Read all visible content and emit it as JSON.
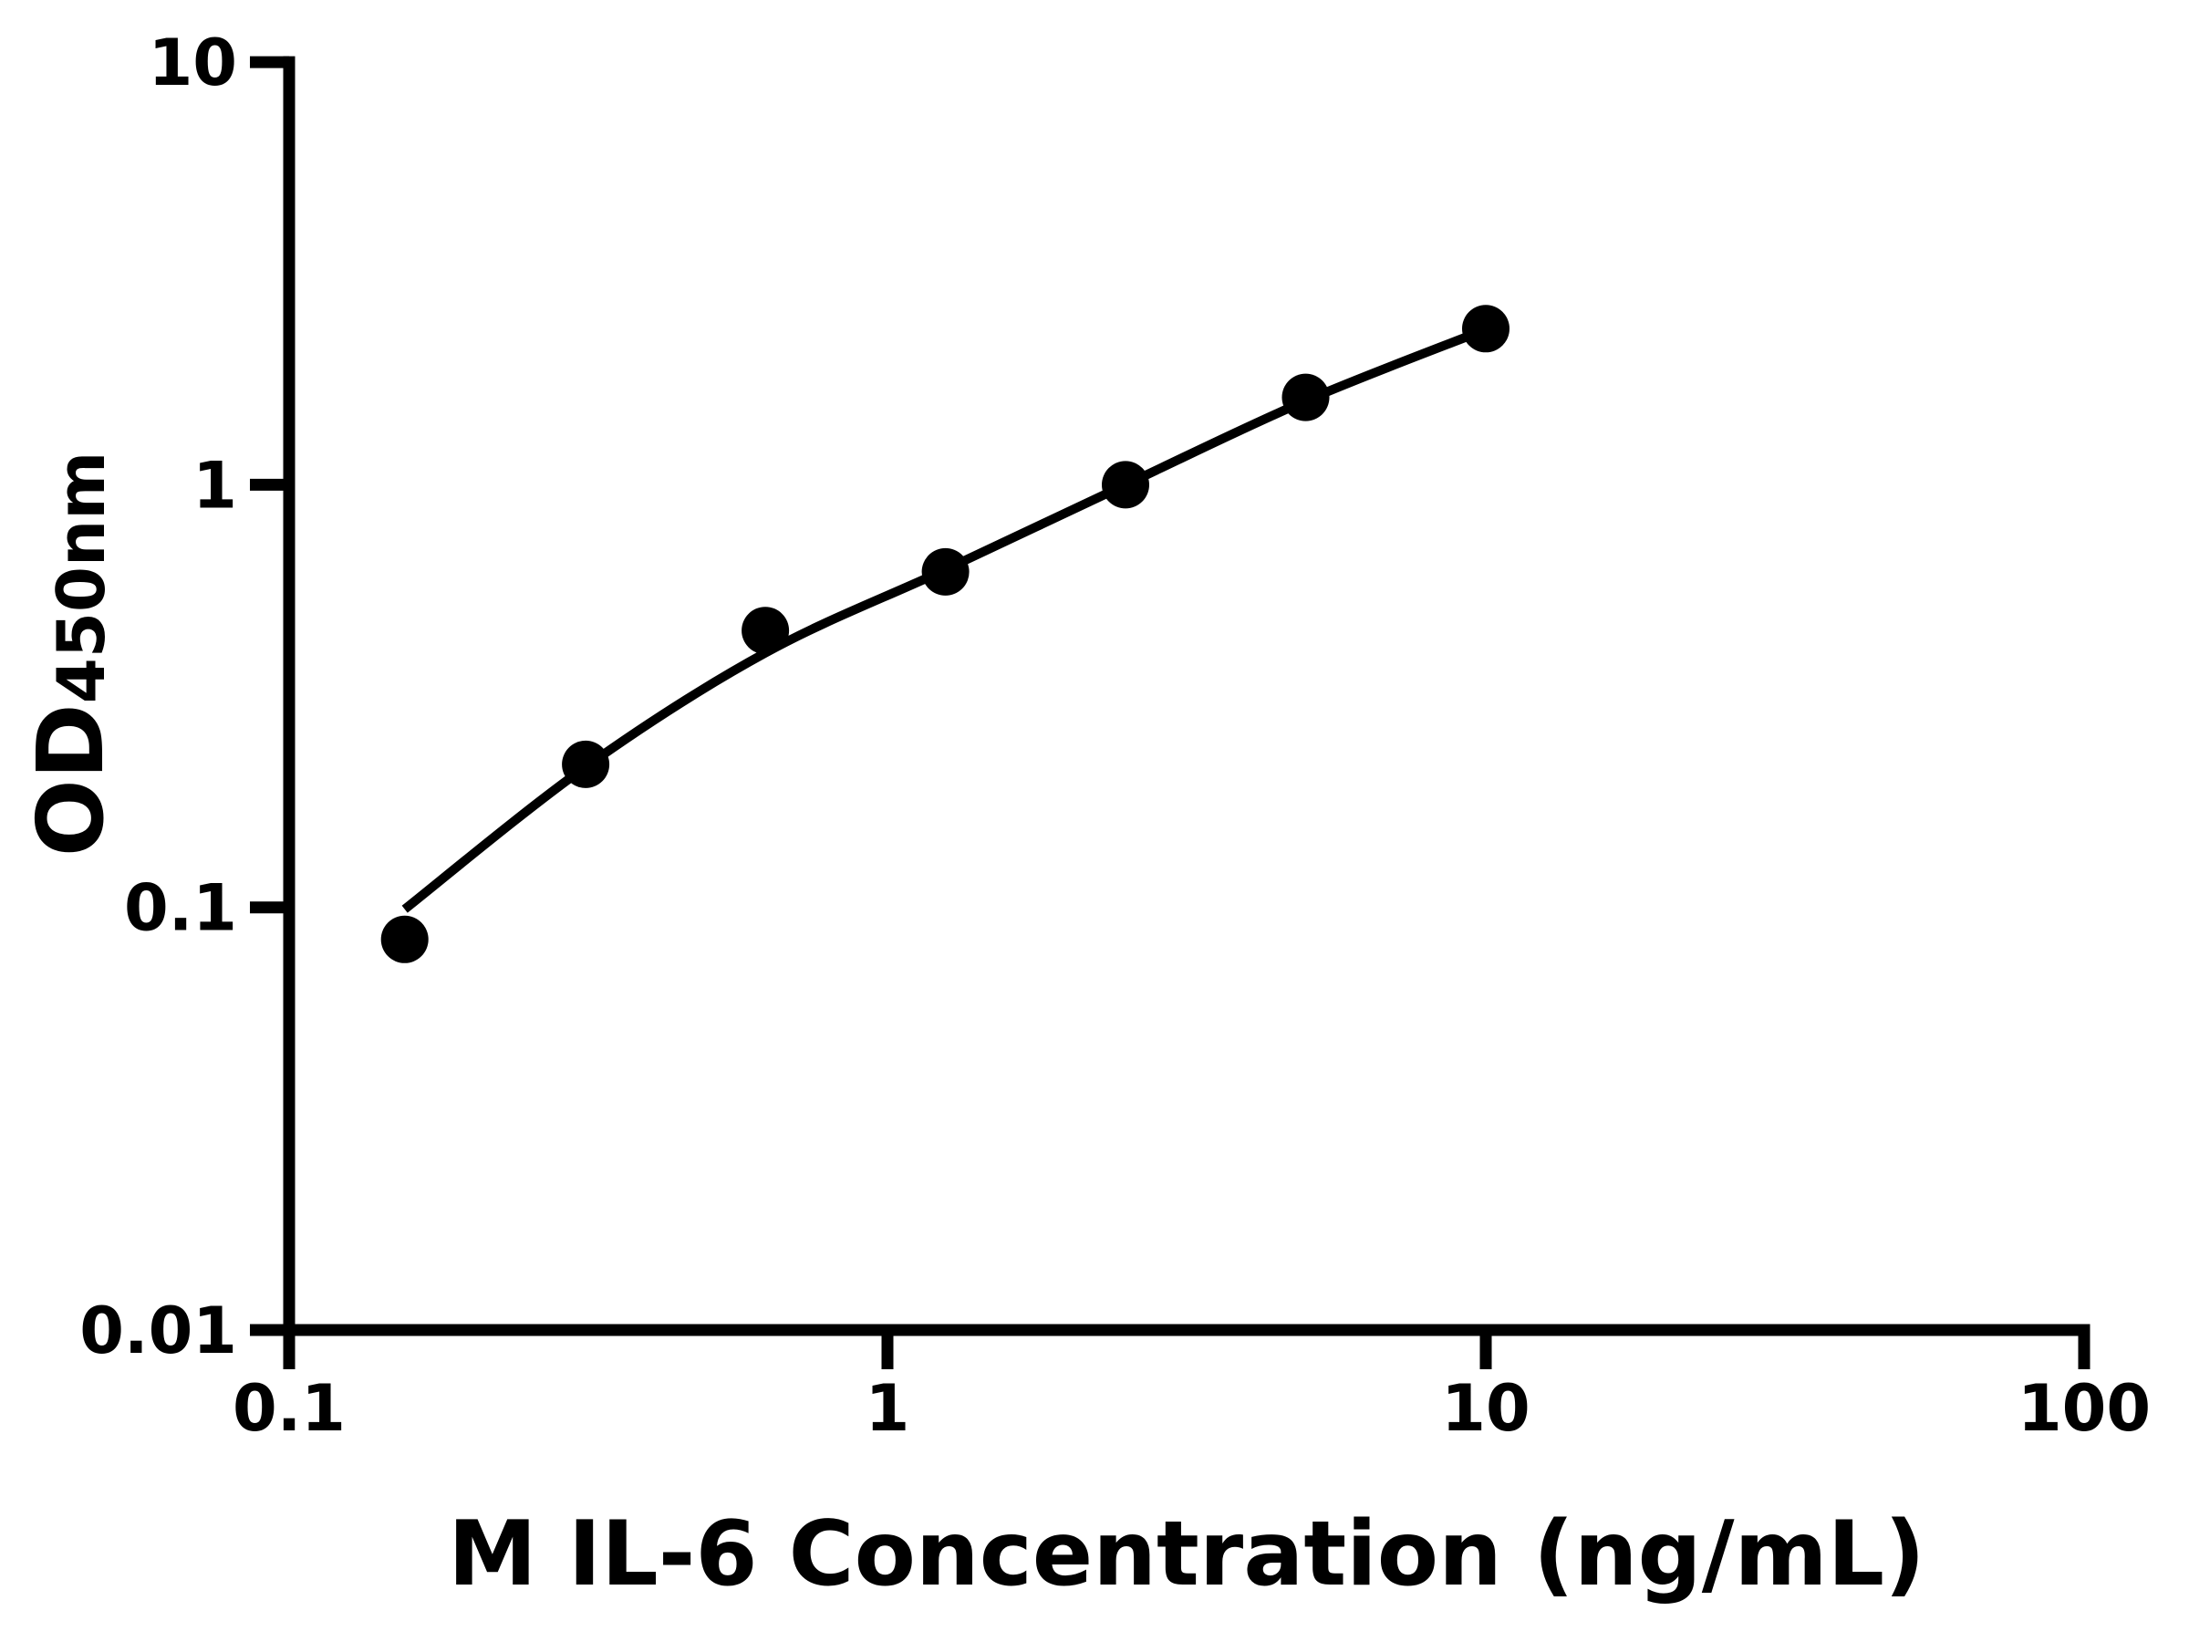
{
  "figure": {
    "background": "#ffffff",
    "ink_color": "#000000"
  },
  "chart_data": {
    "type": "scatter",
    "title": "",
    "xlabel": "M IL-6 Concentration (ng/mL)",
    "ylabel": "OD450nm",
    "ylabel_main": "OD",
    "ylabel_subscript": "450nm",
    "x_scale": "log",
    "y_scale": "log",
    "xlim": [
      0.1,
      100
    ],
    "ylim": [
      0.01,
      10
    ],
    "grid": false,
    "legend": "none",
    "x_ticks": [
      {
        "value": 0.1,
        "label": "0.1"
      },
      {
        "value": 1,
        "label": "1"
      },
      {
        "value": 10,
        "label": "10"
      },
      {
        "value": 100,
        "label": "100"
      }
    ],
    "y_ticks": [
      {
        "value": 0.01,
        "label": "0.01"
      },
      {
        "value": 0.1,
        "label": "0.1"
      },
      {
        "value": 1,
        "label": "1"
      },
      {
        "value": 10,
        "label": "10"
      }
    ],
    "series": [
      {
        "name": "standard_points",
        "plot": "scatter",
        "marker": "filled-circle",
        "color": "#000000",
        "x": [
          0.156,
          0.313,
          0.625,
          1.25,
          2.5,
          5,
          10
        ],
        "y": [
          0.084,
          0.218,
          0.452,
          0.622,
          1.0,
          1.61,
          2.34
        ]
      },
      {
        "name": "fitted_curve",
        "plot": "line",
        "color": "#000000",
        "x": [
          0.156,
          0.313,
          0.625,
          1.25,
          2.5,
          5,
          10
        ],
        "y": [
          0.099,
          0.215,
          0.4,
          0.63,
          1.0,
          1.58,
          2.33
        ]
      }
    ]
  }
}
